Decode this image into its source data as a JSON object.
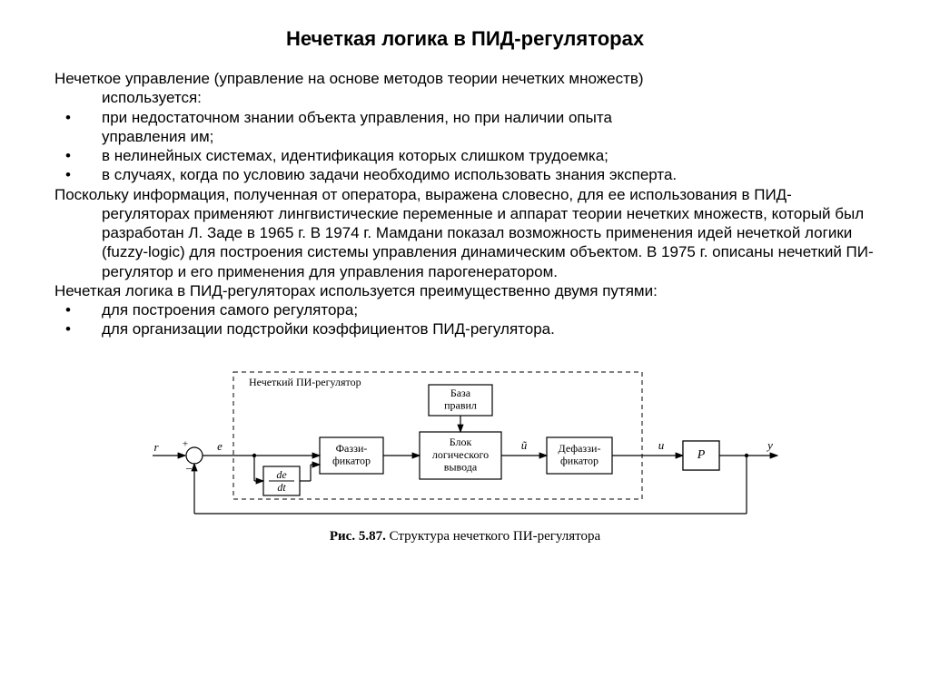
{
  "title": "Нечеткая логика в ПИД-регуляторах",
  "para1_line1": "Нечеткое управление (управление на основе методов теории нечетких множеств)",
  "para1_line2": "используется:",
  "bullets1": {
    "b1a": "при недостаточном знании объекта управления, но при наличии опыта",
    "b1b": "управления им;",
    "b2": "в нелинейных системах, идентификация которых слишком трудоемка;",
    "b3": "в случаях, когда по условию задачи необходимо использовать знания эксперта."
  },
  "para2": "Поскольку информация, полученная от оператора, выражена словесно, для ее использования в ПИД-регуляторах применяют лингвистические переменные и аппарат теории нечетких множеств, который был разработан Л. Заде в 1965 г. В 1974 г. Мамдани показал возможность применения идей нечеткой логики (fuzzy-logic) для построения системы управления динамическим объектом. В 1975 г. описаны нечеткий ПИ-регулятор и его применения для управления парогенератором.",
  "para3": "Нечеткая логика в ПИД-регуляторах используется преимущественно двумя путями:",
  "bullets2": {
    "b1": "для построения самого регулятора;",
    "b2": "для организации подстройки коэффициентов ПИД-регулятора."
  },
  "caption_bold": "Рис. 5.87.",
  "caption_rest": " Структура нечеткого ПИ-регулятора",
  "diagram": {
    "dash_label": "Нечеткий ПИ-регулятор",
    "box_rules_l1": "База",
    "box_rules_l2": "правил",
    "box_fuzz_l1": "Фаззи-",
    "box_fuzz_l2": "фикатор",
    "box_logic_l1": "Блок",
    "box_logic_l2": "логического",
    "box_logic_l3": "вывода",
    "box_defuzz_l1": "Дефаззи-",
    "box_defuzz_l2": "фикатор",
    "box_deriv_top": "de",
    "box_deriv_bot": "dt",
    "box_plant": "P",
    "sig_r": "r",
    "sig_e": "e",
    "sig_utilde": "ũ",
    "sig_u": "u",
    "sig_y": "y",
    "colors": {
      "stroke": "#000000",
      "bg": "#ffffff",
      "text": "#000000"
    },
    "line_w": 1.2,
    "font_block": 12,
    "font_signal": 13,
    "font_dash_label": 12
  }
}
